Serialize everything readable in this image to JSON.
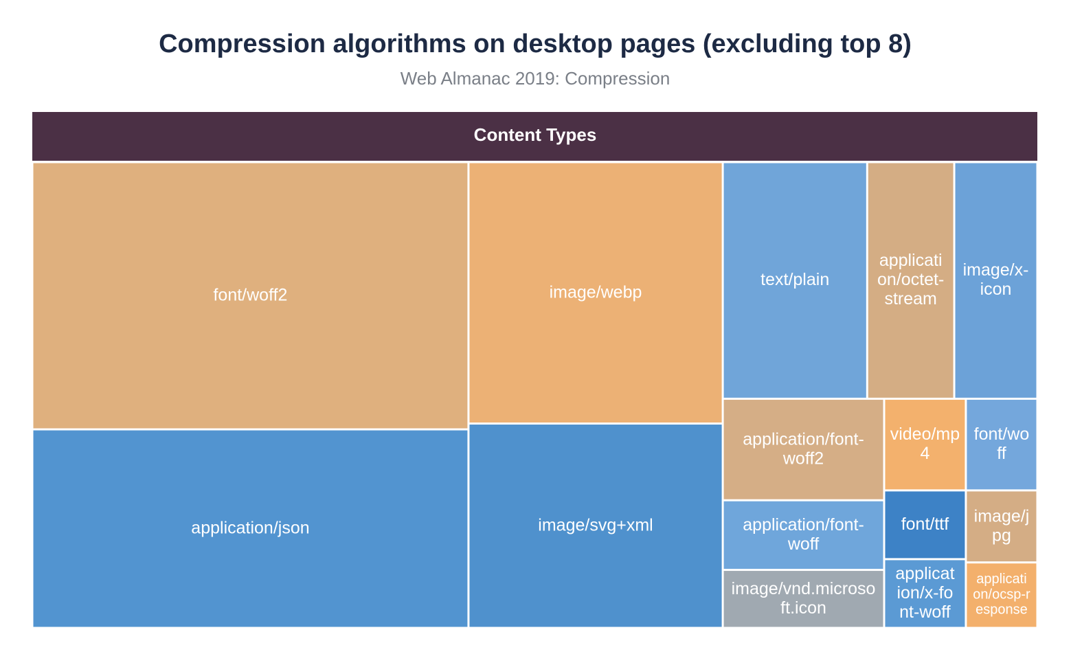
{
  "chart_data": {
    "type": "treemap",
    "title": "Compression algorithms on desktop pages (excluding top 8)",
    "subtitle": "Web Almanac 2019: Compression",
    "root": "Content Types",
    "root_color": "#4b3045",
    "labels": [
      "font/woff2",
      "application/json",
      "image/webp",
      "image/svg+xml",
      "text/plain",
      "application/octet-stream",
      "image/x-icon",
      "application/font-woff2",
      "application/font-woff",
      "image/vnd.microsoft.icon",
      "video/mp4",
      "font/woff",
      "font/ttf",
      "application/x-font-woff",
      "image/jpg",
      "application/ocsp-response"
    ],
    "values": [
      24.9,
      18.5,
      14.2,
      11.1,
      7.3,
      4.4,
      4.2,
      3.5,
      2.4,
      2.0,
      1.6,
      1.4,
      1.2,
      1.2,
      1.1,
      1.0
    ],
    "colors": [
      "#dfb07e",
      "#5294d0",
      "#ecb175",
      "#4f91cd",
      "#70a5d9",
      "#d4ad84",
      "#6ca2d8",
      "#d5ae86",
      "#6fa6db",
      "#a0a9b1",
      "#f3b16d",
      "#74a7dc",
      "#3d82c6",
      "#5b9ad4",
      "#d4ad85",
      "#f3b06c"
    ]
  }
}
